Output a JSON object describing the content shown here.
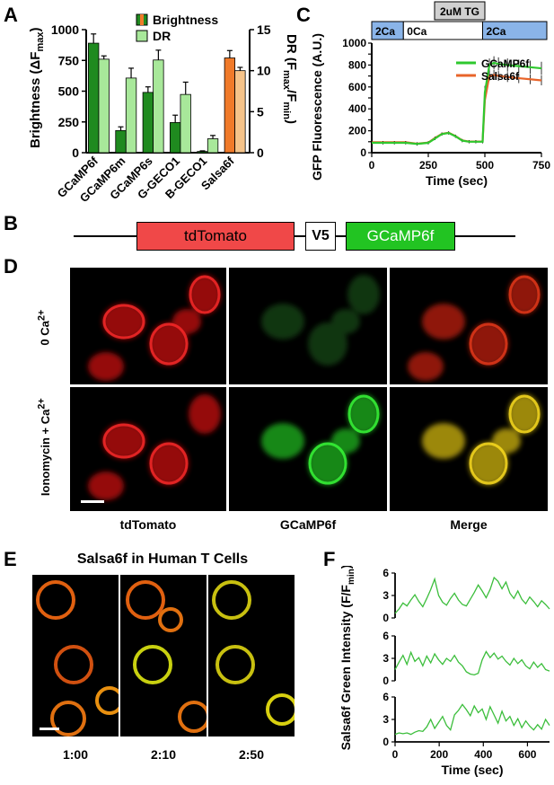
{
  "panel_labels": {
    "A": "A",
    "B": "B",
    "C": "C",
    "D": "D",
    "E": "E",
    "F": "F"
  },
  "chart_data": [
    {
      "id": "A",
      "type": "bar",
      "categories": [
        "GCaMP6f",
        "GCaMP6m",
        "GCaMP6s",
        "G-GECO1",
        "B-GECO1",
        "Salsa6f"
      ],
      "ylabel_left": "Brightness (ΔF",
      "ylabel_left_sub": "max",
      "ylabel_right": "DR (F",
      "ylabel_right_sub1": "max",
      "ylabel_right_mid": "/F",
      "ylabel_right_sub2": "min",
      "ylim_left": [
        0,
        1000
      ],
      "ylim_right": [
        0,
        15
      ],
      "yticks_left": [
        "0",
        "250",
        "500",
        "750",
        "1000"
      ],
      "yticks_right": [
        "0",
        "5",
        "10",
        "15"
      ],
      "series": [
        {
          "name": "Brightness",
          "axis": "left",
          "values": [
            890,
            180,
            490,
            245,
            10,
            770
          ],
          "errors": [
            75,
            30,
            45,
            60,
            5,
            60
          ],
          "colors": [
            "#1f8a1f",
            "#1f8a1f",
            "#1f8a1f",
            "#1f8a1f",
            "#1f8a1f",
            "#f07a2a"
          ]
        },
        {
          "name": "DR",
          "axis": "right",
          "values": [
            11.4,
            9.1,
            11.3,
            7.1,
            1.7,
            10.0
          ],
          "errors": [
            0.4,
            1.2,
            1.2,
            1.5,
            0.4,
            0.4
          ],
          "colors": [
            "#a8e89a",
            "#a8e89a",
            "#a8e89a",
            "#a8e89a",
            "#a8e89a",
            "#f5c38a"
          ]
        }
      ],
      "legend": [
        {
          "name": "Brightness"
        },
        {
          "name": "DR"
        }
      ],
      "legend_position": "top-right"
    },
    {
      "id": "C",
      "type": "line",
      "xlabel": "Time (sec)",
      "ylabel": "GFP Fluorescence (A.U.)",
      "xlim": [
        0,
        750
      ],
      "ylim": [
        0,
        1000
      ],
      "xticks": [
        "0",
        "250",
        "500",
        "750"
      ],
      "yticks": [
        "0",
        "100",
        "200",
        "300",
        "400",
        "500",
        "600",
        "700",
        "800",
        "900",
        "1000"
      ],
      "annotation": "2uM TG",
      "bars": [
        "2Ca",
        "0Ca",
        "2Ca"
      ],
      "x": [
        0,
        50,
        100,
        150,
        200,
        250,
        280,
        310,
        340,
        370,
        400,
        430,
        460,
        490,
        500,
        520,
        540,
        560,
        600,
        650,
        700,
        750
      ],
      "series": [
        {
          "name": "GCaMP6f",
          "color": "#2ec82e",
          "values": [
            90,
            90,
            90,
            90,
            80,
            90,
            130,
            170,
            180,
            150,
            110,
            100,
            100,
            100,
            550,
            800,
            820,
            810,
            800,
            790,
            780,
            770
          ]
        },
        {
          "name": "Salsa6f",
          "color": "#e8642a",
          "values": [
            95,
            95,
            95,
            95,
            82,
            92,
            135,
            172,
            182,
            152,
            112,
            102,
            102,
            102,
            480,
            700,
            710,
            700,
            690,
            680,
            670,
            660
          ]
        }
      ],
      "legend_position": "top-right"
    },
    {
      "id": "F",
      "type": "line",
      "xlabel": "Time (sec)",
      "ylabel": "Salsa6f Green Intensity (F/F",
      "ylabel_sub": "min",
      "xlim": [
        0,
        700
      ],
      "ylim": [
        0,
        6
      ],
      "xticks": [
        "0",
        "200",
        "400",
        "600"
      ],
      "yticks": [
        "0",
        "3",
        "6"
      ],
      "series": [
        {
          "name": "trace1",
          "color": "#3cbe3c",
          "values": [
            0.6,
            1.2,
            2.0,
            1.6,
            2.4,
            3.1,
            2.2,
            1.5,
            2.6,
            3.8,
            5.2,
            3.0,
            2.1,
            1.7,
            2.6,
            3.3,
            2.4,
            1.8,
            1.6,
            2.5,
            3.4,
            4.4,
            3.6,
            2.7,
            3.8,
            5.4,
            4.9,
            3.9,
            4.8,
            3.3,
            2.6,
            3.6,
            2.5,
            1.9,
            2.8,
            2.2,
            1.5,
            2.3,
            1.8,
            1.2
          ]
        },
        {
          "name": "trace2",
          "color": "#3cbe3c",
          "values": [
            1.5,
            2.5,
            3.4,
            2.2,
            3.8,
            2.6,
            3.1,
            2.0,
            3.3,
            2.4,
            3.6,
            2.8,
            2.2,
            3.0,
            2.6,
            3.4,
            2.5,
            2.0,
            1.2,
            0.9,
            0.8,
            1.0,
            2.8,
            3.9,
            3.1,
            3.7,
            2.9,
            3.3,
            2.6,
            2.1,
            3.0,
            2.3,
            2.8,
            2.0,
            1.6,
            2.5,
            1.8,
            2.3,
            1.5,
            1.3
          ]
        },
        {
          "name": "trace3",
          "color": "#3cbe3c",
          "values": [
            1.0,
            1.2,
            1.1,
            1.2,
            1.0,
            1.3,
            1.5,
            1.4,
            2.0,
            3.0,
            1.8,
            2.6,
            3.4,
            2.2,
            1.6,
            3.6,
            4.2,
            5.0,
            4.3,
            3.5,
            4.8,
            3.9,
            4.4,
            3.0,
            4.7,
            3.6,
            2.5,
            4.1,
            2.8,
            3.4,
            2.2,
            3.1,
            1.9,
            2.8,
            2.1,
            1.6,
            2.3,
            1.7,
            3.0,
            2.2
          ]
        }
      ]
    }
  ],
  "panel_B": {
    "segments": [
      "tdTomato",
      "V5",
      "GCaMP6f"
    ]
  },
  "panel_D": {
    "rows": [
      "0 Ca",
      "Ionomycin + Ca"
    ],
    "row_sup": "2+",
    "cols": [
      "tdTomato",
      "GCaMP6f",
      "Merge"
    ]
  },
  "panel_E": {
    "title": "Salsa6f in Human T Cells",
    "times": [
      "1:00",
      "2:10",
      "2:50"
    ]
  }
}
